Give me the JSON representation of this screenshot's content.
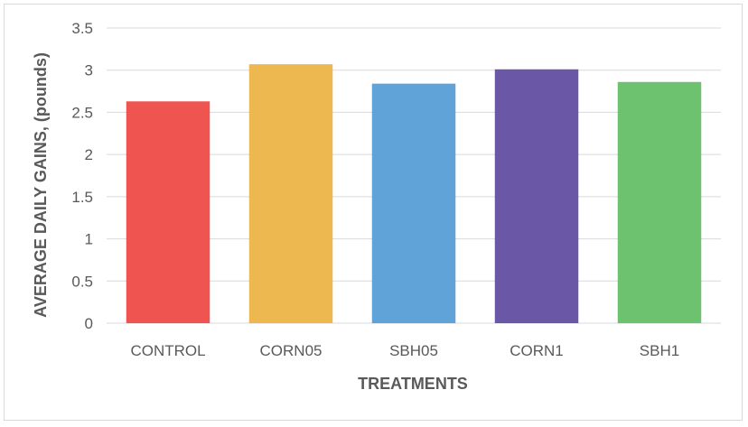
{
  "chart_data": {
    "type": "bar",
    "title": "",
    "xlabel": "TREATMENTS",
    "ylabel": "AVERAGE DAILY GAINS, (pounds)",
    "categories": [
      "CONTROL",
      "CORN05",
      "SBH05",
      "CORN1",
      "SBH1"
    ],
    "values": [
      2.63,
      3.07,
      2.84,
      3.01,
      2.86
    ],
    "colors": [
      "#ef5451",
      "#edb84f",
      "#5fa3d8",
      "#6a58a7",
      "#6cc26e"
    ],
    "ylim": [
      0,
      3.5
    ],
    "yticks": [
      0,
      0.5,
      1,
      1.5,
      2,
      2.5,
      3,
      3.5
    ],
    "ytick_labels": [
      "0",
      "0.5",
      "1",
      "1.5",
      "2",
      "2.5",
      "3",
      "3.5"
    ],
    "grid": true,
    "legend": "none",
    "gridline_color": "#d9d9d9"
  }
}
